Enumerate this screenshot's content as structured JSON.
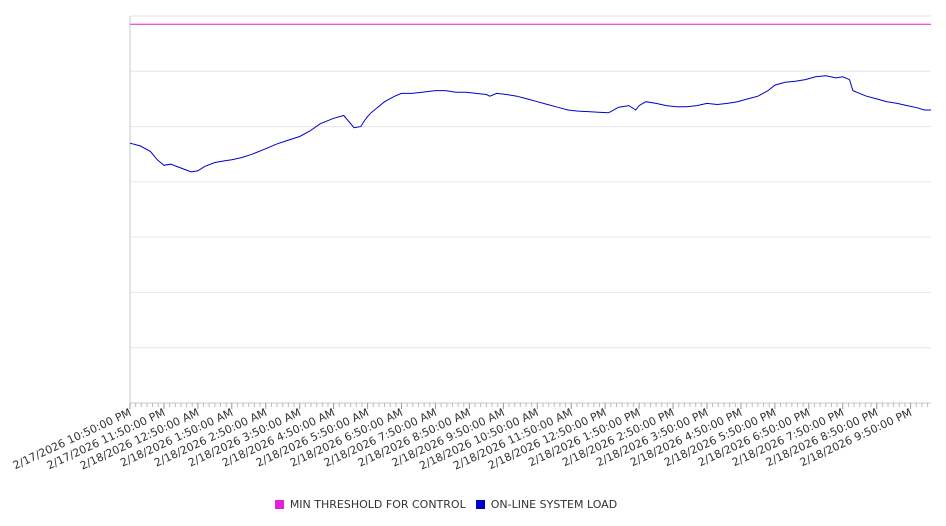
{
  "chart_data": {
    "type": "line",
    "title": "",
    "xlabel": "",
    "ylabel": "",
    "x_ticks": [
      "2/17/2026 10:50:00 PM",
      "2/17/2026 11:50:00 PM",
      "2/18/2026 12:50:00 AM",
      "2/18/2026 1:50:00 AM",
      "2/18/2026 2:50:00 AM",
      "2/18/2026 3:50:00 AM",
      "2/18/2026 4:50:00 AM",
      "2/18/2026 5:50:00 AM",
      "2/18/2026 6:50:00 AM",
      "2/18/2026 7:50:00 AM",
      "2/18/2026 8:50:00 AM",
      "2/18/2026 9:50:00 AM",
      "2/18/2026 10:50:00 AM",
      "2/18/2026 11:50:00 AM",
      "2/18/2026 12:50:00 PM",
      "2/18/2026 1:50:00 PM",
      "2/18/2026 2:50:00 PM",
      "2/18/2026 3:50:00 PM",
      "2/18/2026 4:50:00 PM",
      "2/18/2026 5:50:00 PM",
      "2/18/2026 6:50:00 PM",
      "2/18/2026 7:50:00 PM",
      "2/18/2026 8:50:00 PM",
      "2/18/2026 9:50:00 PM"
    ],
    "x_range_hours": [
      0,
      23.6
    ],
    "ylim": [
      0,
      7
    ],
    "y_gridlines": [
      1,
      2,
      3,
      4,
      5,
      6,
      7
    ],
    "grid": true,
    "legend_position": "bottom",
    "series": [
      {
        "name": "MIN THRESHOLD FOR CONTROL",
        "color": "#e31fd9",
        "x": [
          0,
          23.6
        ],
        "y": [
          6.85,
          6.85
        ]
      },
      {
        "name": "ON-LINE SYSTEM LOAD",
        "color": "#0000cc",
        "x": [
          0,
          0.3,
          0.6,
          0.8,
          1.0,
          1.2,
          1.5,
          1.8,
          2.0,
          2.2,
          2.5,
          2.8,
          3.0,
          3.3,
          3.6,
          4.0,
          4.3,
          4.6,
          5.0,
          5.3,
          5.6,
          6.0,
          6.3,
          6.6,
          6.8,
          6.9,
          7.0,
          7.1,
          7.3,
          7.5,
          7.8,
          8.0,
          8.3,
          8.6,
          9.0,
          9.3,
          9.6,
          9.9,
          10.2,
          10.5,
          10.6,
          10.8,
          11.1,
          11.4,
          11.7,
          12.0,
          12.3,
          12.6,
          12.9,
          13.2,
          13.5,
          13.8,
          14.1,
          14.4,
          14.7,
          14.9,
          15.0,
          15.2,
          15.5,
          15.8,
          16.1,
          16.4,
          16.7,
          17.0,
          17.3,
          17.6,
          17.9,
          18.2,
          18.5,
          18.8,
          19.0,
          19.3,
          19.6,
          19.9,
          20.2,
          20.5,
          20.8,
          21.0,
          21.2,
          21.3,
          21.5,
          21.7,
          22.0,
          22.3,
          22.6,
          22.9,
          23.2,
          23.4,
          23.6
        ],
        "y": [
          4.7,
          4.65,
          4.55,
          4.4,
          4.3,
          4.32,
          4.25,
          4.18,
          4.2,
          4.28,
          4.35,
          4.38,
          4.4,
          4.44,
          4.5,
          4.6,
          4.68,
          4.74,
          4.82,
          4.92,
          5.05,
          5.15,
          5.2,
          4.98,
          5.0,
          5.1,
          5.18,
          5.25,
          5.35,
          5.45,
          5.55,
          5.6,
          5.6,
          5.62,
          5.65,
          5.65,
          5.62,
          5.62,
          5.6,
          5.58,
          5.55,
          5.6,
          5.58,
          5.55,
          5.5,
          5.45,
          5.4,
          5.35,
          5.3,
          5.28,
          5.27,
          5.26,
          5.25,
          5.35,
          5.38,
          5.3,
          5.38,
          5.45,
          5.42,
          5.38,
          5.36,
          5.36,
          5.38,
          5.42,
          5.4,
          5.42,
          5.45,
          5.5,
          5.55,
          5.65,
          5.75,
          5.8,
          5.82,
          5.85,
          5.9,
          5.92,
          5.88,
          5.9,
          5.85,
          5.65,
          5.6,
          5.55,
          5.5,
          5.45,
          5.42,
          5.38,
          5.34,
          5.3,
          5.3
        ]
      }
    ]
  }
}
